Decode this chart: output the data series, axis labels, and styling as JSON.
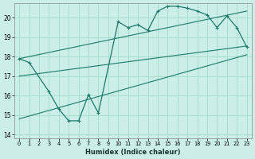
{
  "xlabel": "Humidex (Indice chaleur)",
  "bg_color": "#cceee8",
  "grid_color": "#aaddcc",
  "line_color": "#1a7a6a",
  "xlim": [
    -0.5,
    23.5
  ],
  "ylim": [
    13.8,
    20.75
  ],
  "xticks": [
    0,
    1,
    2,
    3,
    4,
    5,
    6,
    7,
    8,
    9,
    10,
    11,
    12,
    13,
    14,
    15,
    16,
    17,
    18,
    19,
    20,
    21,
    22,
    23
  ],
  "yticks": [
    14,
    15,
    16,
    17,
    18,
    19,
    20
  ],
  "main_curve_x": [
    0,
    1,
    3,
    4,
    5,
    6,
    7,
    8,
    10,
    11,
    12,
    13,
    14,
    15,
    16,
    17,
    18,
    19,
    20,
    21,
    22,
    23
  ],
  "main_curve_y": [
    17.9,
    17.7,
    16.2,
    15.3,
    14.7,
    14.7,
    16.05,
    15.1,
    19.8,
    19.5,
    19.65,
    19.35,
    20.35,
    20.6,
    20.6,
    20.5,
    20.35,
    20.15,
    19.5,
    20.1,
    19.5,
    18.5
  ],
  "upper_line_x": [
    0,
    23
  ],
  "upper_line_y": [
    17.9,
    20.35
  ],
  "mid_line_x": [
    0,
    23
  ],
  "mid_line_y": [
    17.0,
    18.55
  ],
  "lower_line_x": [
    0,
    23
  ],
  "lower_line_y": [
    14.8,
    18.1
  ]
}
